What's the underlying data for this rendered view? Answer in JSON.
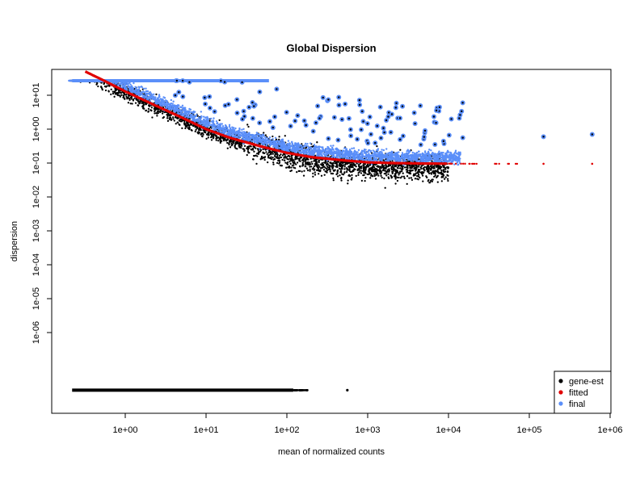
{
  "chart_data": {
    "type": "scatter",
    "title": "Global Dispersion",
    "xlabel": "mean of normalized counts",
    "ylabel": "dispersion",
    "x_scale": "log10",
    "y_scale": "log10",
    "xlim": [
      0.15,
      1300000
    ],
    "ylim": [
      1e-08,
      80
    ],
    "x_ticks": [
      "1e+00",
      "1e+01",
      "1e+02",
      "1e+03",
      "1e+04",
      "1e+05",
      "1e+06"
    ],
    "y_ticks": [
      "1e+01",
      "1e+00",
      "1e-01",
      "1e-02",
      "1e-03",
      "1e-04",
      "1e-05",
      "1e-06"
    ],
    "grid": false,
    "legend": {
      "position": "bottom-right",
      "entries": [
        {
          "label": "gene-est",
          "color": "#000000"
        },
        {
          "label": "fitted",
          "color": "#e00000"
        },
        {
          "label": "final",
          "color": "#5b8ff9"
        }
      ]
    },
    "series": [
      {
        "name": "gene-est",
        "color": "#000000",
        "points": [
          [
            0.3,
            20
          ],
          [
            0.5,
            12
          ],
          [
            0.8,
            8
          ],
          [
            1,
            4
          ],
          [
            1.5,
            3
          ],
          [
            2,
            2
          ],
          [
            3,
            1.5
          ],
          [
            5,
            1
          ],
          [
            8,
            0.7
          ],
          [
            10,
            0.6
          ],
          [
            15,
            0.5
          ],
          [
            20,
            0.35
          ],
          [
            30,
            0.3
          ],
          [
            50,
            0.2
          ],
          [
            80,
            0.1
          ],
          [
            100,
            0.08
          ],
          [
            150,
            0.06
          ],
          [
            200,
            0.05
          ],
          [
            300,
            0.04
          ],
          [
            500,
            0.03
          ],
          [
            800,
            0.02
          ],
          [
            1000,
            0.02
          ],
          [
            1500,
            0.02
          ],
          [
            2000,
            0.025
          ],
          [
            3000,
            0.03
          ],
          [
            5000,
            0.04
          ],
          [
            8000,
            0.05
          ],
          [
            10000,
            0.06
          ],
          [
            5,
            8
          ],
          [
            10,
            5
          ],
          [
            20,
            3
          ],
          [
            50,
            2
          ],
          [
            100,
            1.5
          ],
          [
            200,
            1
          ],
          [
            500,
            0.8
          ],
          [
            1000,
            0.5
          ],
          [
            3000,
            0.3
          ]
        ]
      },
      {
        "name": "fitted",
        "color": "#e00000",
        "x": [
          0.32,
          0.5,
          1,
          2,
          5,
          10,
          20,
          50,
          100,
          200,
          500,
          1000,
          2000,
          5000,
          10000,
          20000,
          50000,
          150000,
          600000
        ],
        "y": [
          50,
          30,
          13,
          6,
          2.2,
          1.0,
          0.55,
          0.3,
          0.2,
          0.15,
          0.12,
          0.105,
          0.1,
          0.097,
          0.096,
          0.095,
          0.095,
          0.095,
          0.095
        ]
      },
      {
        "name": "final",
        "color": "#5b8ff9",
        "points": [
          [
            0.3,
            20
          ],
          [
            0.5,
            15
          ],
          [
            1,
            8
          ],
          [
            2,
            5
          ],
          [
            5,
            2.5
          ],
          [
            10,
            1.5
          ],
          [
            20,
            1
          ],
          [
            50,
            0.6
          ],
          [
            100,
            0.5
          ],
          [
            200,
            0.4
          ],
          [
            500,
            0.3
          ],
          [
            1000,
            0.25
          ],
          [
            2000,
            0.2
          ],
          [
            5000,
            0.2
          ],
          [
            10000,
            0.2
          ],
          [
            5,
            20
          ],
          [
            10,
            20
          ],
          [
            20,
            15
          ],
          [
            50,
            10
          ],
          [
            100,
            12
          ],
          [
            150,
            20
          ],
          [
            300,
            20
          ],
          [
            500,
            10
          ],
          [
            1000,
            8
          ],
          [
            1500,
            5
          ],
          [
            3000,
            3
          ],
          [
            8000,
            1
          ],
          [
            15000,
            6
          ],
          [
            20000,
            0.5
          ],
          [
            50000,
            0.5
          ],
          [
            150000,
            0.6
          ],
          [
            600000,
            0.7
          ]
        ]
      }
    ],
    "low_count_band": {
      "name": "gene-est",
      "y_value": 2e-08,
      "x_range": [
        0.22,
        120
      ],
      "outlier_x": 560
    }
  }
}
